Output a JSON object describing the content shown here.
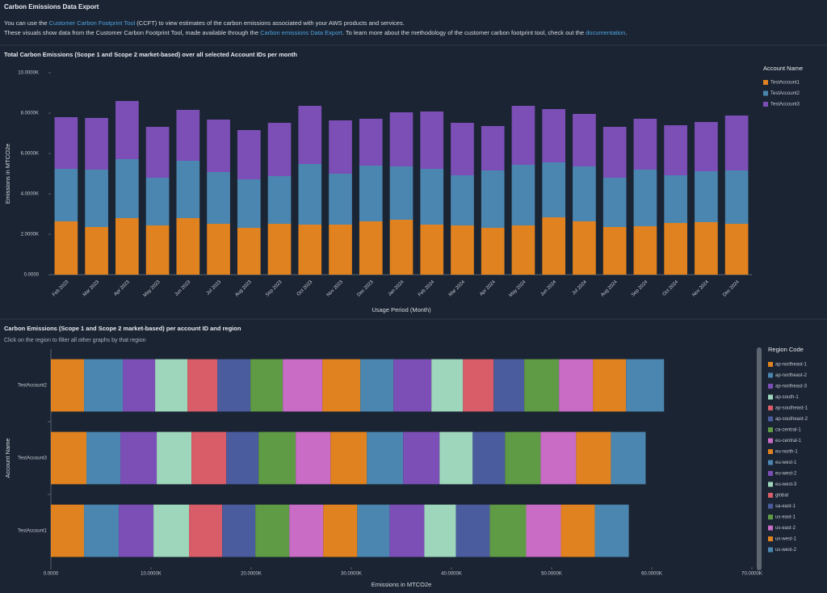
{
  "header": {
    "title": "Carbon Emissions Data Export",
    "line1": {
      "before": "You can use the ",
      "link": "Customer Carbon Footprint Tool",
      "after": " (CCFT) to view estimates of the carbon emissions associated with your AWS products and services."
    },
    "line2": {
      "before": "These visuals show data from the Customer Carbon Footprint Tool, made available through the ",
      "link": "Carbon emissions Data Export",
      "middle": ". To learn more about the methodology of the customer carbon footprint tool, check out the ",
      "link2": "documentation",
      "after": "."
    }
  },
  "chart_data": [
    {
      "type": "bar",
      "stacked": true,
      "title": "Total Carbon Emissions (Scope 1 and Scope 2 market-based) over all selected Account IDs per month",
      "x_label": "Usage Period (Month)",
      "y_label": "Emissions in MTCO2e",
      "legend_title": "Account Name",
      "categories": [
        "Feb 2023",
        "Mar 2023",
        "Apr 2023",
        "May 2023",
        "Jun 2023",
        "Jul 2023",
        "Aug 2023",
        "Sep 2023",
        "Oct 2023",
        "Nov 2023",
        "Dec 2023",
        "Jan 2024",
        "Feb 2024",
        "Mar 2024",
        "Apr 2024",
        "May 2024",
        "Jun 2024",
        "Jul 2024",
        "Aug 2024",
        "Sep 2024",
        "Oct 2024",
        "Nov 2024",
        "Dec 2024"
      ],
      "ylim": [
        0,
        10000
      ],
      "yticks": [
        {
          "value": 0,
          "label": "0.0000"
        },
        {
          "value": 2000,
          "label": "2.0000K"
        },
        {
          "value": 4000,
          "label": "4.0000K"
        },
        {
          "value": 6000,
          "label": "6.0000K"
        },
        {
          "value": 8000,
          "label": "8.0000K"
        },
        {
          "value": 10000,
          "label": "10.0000K"
        }
      ],
      "grid": false,
      "series": [
        {
          "name": "TestAccount1",
          "color": "#e0821f",
          "values": [
            2640,
            2360,
            2800,
            2440,
            2800,
            2520,
            2320,
            2520,
            2480,
            2480,
            2640,
            2720,
            2480,
            2440,
            2320,
            2440,
            2840,
            2640,
            2360,
            2400,
            2560,
            2600,
            2520
          ]
        },
        {
          "name": "TestAccount2",
          "color": "#4a86b0",
          "values": [
            2600,
            2840,
            2920,
            2360,
            2840,
            2560,
            2400,
            2360,
            3000,
            2520,
            2760,
            2640,
            2760,
            2480,
            2840,
            3000,
            2720,
            2720,
            2440,
            2800,
            2360,
            2520,
            2640
          ]
        },
        {
          "name": "TestAccount3",
          "color": "#7b4fb6",
          "values": [
            2560,
            2560,
            2880,
            2520,
            2520,
            2600,
            2440,
            2640,
            2880,
            2640,
            2320,
            2680,
            2840,
            2600,
            2200,
            2920,
            2640,
            2600,
            2520,
            2520,
            2480,
            2440,
            2720
          ]
        }
      ]
    },
    {
      "type": "barh",
      "stacked": true,
      "title": "Carbon Emissions (Scope 1 and Scope 2 market-based) per account ID and region",
      "subtitle": "Click on the region to filter all other graphs by that region",
      "x_label": "Emissions in MTCO2e",
      "y_label": "Account Name",
      "legend_title": "Region Code",
      "categories": [
        "TestAccount2",
        "TestAccount3",
        "TestAccount1"
      ],
      "xlim": [
        0,
        70000
      ],
      "xticks": [
        {
          "value": 0,
          "label": "0.0000"
        },
        {
          "value": 10000,
          "label": "10.0000K"
        },
        {
          "value": 20000,
          "label": "20.0000K"
        },
        {
          "value": 30000,
          "label": "30.0000K"
        },
        {
          "value": 40000,
          "label": "40.0000K"
        },
        {
          "value": 50000,
          "label": "50.0000K"
        },
        {
          "value": 60000,
          "label": "60.0000K"
        },
        {
          "value": 70000,
          "label": "70.0000K"
        }
      ],
      "grid": false,
      "series": [
        {
          "name": "ap-northeast-1",
          "color": "#e0821f",
          "values": [
            3310,
            3550,
            3310
          ]
        },
        {
          "name": "ap-northeast-2",
          "color": "#4a86b0",
          "values": [
            3870,
            3390,
            3470
          ]
        },
        {
          "name": "ap-northeast-3",
          "color": "#7b4fb6",
          "values": [
            3230,
            3630,
            3470
          ]
        },
        {
          "name": "ap-south-1",
          "color": "#9ed6bc",
          "values": [
            3230,
            3470,
            3550
          ]
        },
        {
          "name": "ap-southeast-1",
          "color": "#d95d68",
          "values": [
            2980,
            3470,
            3310
          ]
        },
        {
          "name": "ap-southeast-2",
          "color": "#4b5c9e",
          "values": [
            3310,
            3230,
            3310
          ]
        },
        {
          "name": "ca-central-1",
          "color": "#5f9a44",
          "values": [
            3230,
            3710,
            3390
          ]
        },
        {
          "name": "eu-central-1",
          "color": "#c86cc6",
          "values": [
            3950,
            3470,
            3390
          ]
        },
        {
          "name": "eu-north-1",
          "color": "#e0821f",
          "values": [
            3790,
            3630,
            3390
          ]
        },
        {
          "name": "eu-west-1",
          "color": "#4a86b0",
          "values": [
            3310,
            3630,
            3230
          ]
        },
        {
          "name": "eu-west-2",
          "color": "#7b4fb6",
          "values": [
            3790,
            3630,
            3470
          ]
        },
        {
          "name": "eu-west-3",
          "color": "#9ed6bc",
          "values": [
            3150,
            3310,
            3150
          ]
        },
        {
          "name": "global",
          "color": "#d95d68",
          "values": [
            3060,
            null,
            null
          ]
        },
        {
          "name": "sa-east-1",
          "color": "#4b5c9e",
          "values": [
            3060,
            3230,
            3390
          ]
        },
        {
          "name": "us-east-1",
          "color": "#5f9a44",
          "values": [
            3470,
            3550,
            3630
          ]
        },
        {
          "name": "us-east-2",
          "color": "#c86cc6",
          "values": [
            3390,
            3550,
            3470
          ]
        },
        {
          "name": "us-west-1",
          "color": "#e0821f",
          "values": [
            3310,
            3470,
            3390
          ]
        },
        {
          "name": "us-west-2",
          "color": "#4a86b0",
          "values": [
            3790,
            3470,
            3390
          ]
        }
      ]
    }
  ]
}
